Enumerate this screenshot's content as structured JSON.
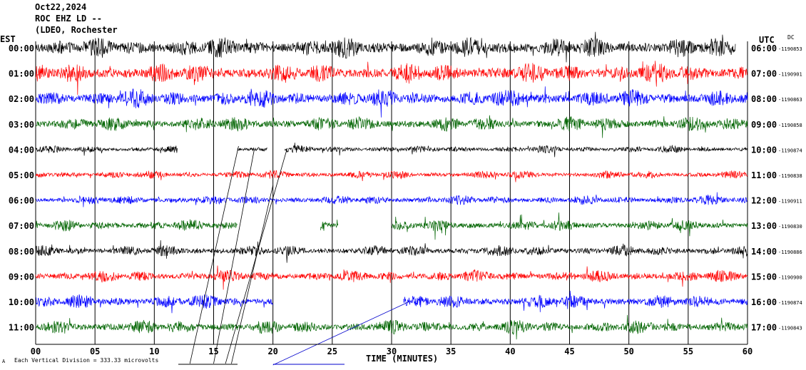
{
  "header": {
    "date": "Oct22,2024",
    "station": "ROC EHZ LD --",
    "network": "(LDEO, Rochester"
  },
  "left_label": "EST",
  "right_label": "UTC",
  "dc_label": "DC",
  "footer": {
    "scale_text": "Each Vertical Division =  333.33 microvolts",
    "corner_mark": "A"
  },
  "colors": {
    "black": "#000000",
    "red": "#ff0000",
    "blue": "#0000ff",
    "green": "#006400",
    "event_line": "#0000cc"
  },
  "chart_data": {
    "type": "line",
    "title": "ROC EHZ LD --",
    "xlabel": "TIME (MINUTES)",
    "xlim": [
      0,
      60
    ],
    "x_ticks": [
      0,
      5,
      10,
      15,
      20,
      25,
      30,
      35,
      40,
      45,
      50,
      55,
      60
    ],
    "x_tick_labels": [
      "00",
      "05",
      "10",
      "15",
      "20",
      "25",
      "30",
      "35",
      "40",
      "45",
      "50",
      "55",
      "60"
    ],
    "rows": [
      {
        "est": "00:00",
        "utc": "06:00",
        "dc": "-1190853",
        "color": "black",
        "end_min": 59.0,
        "amplitude": 2.2,
        "gaps": []
      },
      {
        "est": "01:00",
        "utc": "07:00",
        "dc": "-1190901",
        "color": "red",
        "end_min": 60,
        "amplitude": 2.2,
        "gaps": []
      },
      {
        "est": "02:00",
        "utc": "08:00",
        "dc": "-1190863",
        "color": "blue",
        "end_min": 60,
        "amplitude": 2.0,
        "gaps": []
      },
      {
        "est": "03:00",
        "utc": "09:00",
        "dc": "-1190858",
        "color": "green",
        "end_min": 60,
        "amplitude": 1.6,
        "gaps": []
      },
      {
        "est": "04:00",
        "utc": "10:00",
        "dc": "-1190874",
        "color": "black",
        "end_min": 60,
        "amplitude": 0.8,
        "gaps": [
          [
            12,
            17
          ],
          [
            19.5,
            21
          ]
        ]
      },
      {
        "est": "05:00",
        "utc": "11:00",
        "dc": "-1190838",
        "color": "red",
        "end_min": 60,
        "amplitude": 0.9,
        "gaps": []
      },
      {
        "est": "06:00",
        "utc": "12:00",
        "dc": "-1190911",
        "color": "blue",
        "end_min": 60,
        "amplitude": 1.0,
        "gaps": []
      },
      {
        "est": "07:00",
        "utc": "13:00",
        "dc": "-1190830",
        "color": "green",
        "end_min": 60,
        "amplitude": 1.2,
        "gaps": [
          [
            17,
            24
          ],
          [
            25.5,
            30
          ]
        ]
      },
      {
        "est": "08:00",
        "utc": "14:00",
        "dc": "-1190886",
        "color": "black",
        "end_min": 60,
        "amplitude": 1.2,
        "gaps": []
      },
      {
        "est": "09:00",
        "utc": "15:00",
        "dc": "-1190900",
        "color": "red",
        "end_min": 60,
        "amplitude": 1.3,
        "gaps": []
      },
      {
        "est": "10:00",
        "utc": "16:00",
        "dc": "-1190874",
        "color": "blue",
        "end_min": 60,
        "amplitude": 1.5,
        "gaps": [
          [
            20,
            31
          ]
        ]
      },
      {
        "est": "11:00",
        "utc": "17:00",
        "dc": "-1190843",
        "color": "green",
        "end_min": 60,
        "amplitude": 1.5,
        "gaps": []
      }
    ]
  }
}
